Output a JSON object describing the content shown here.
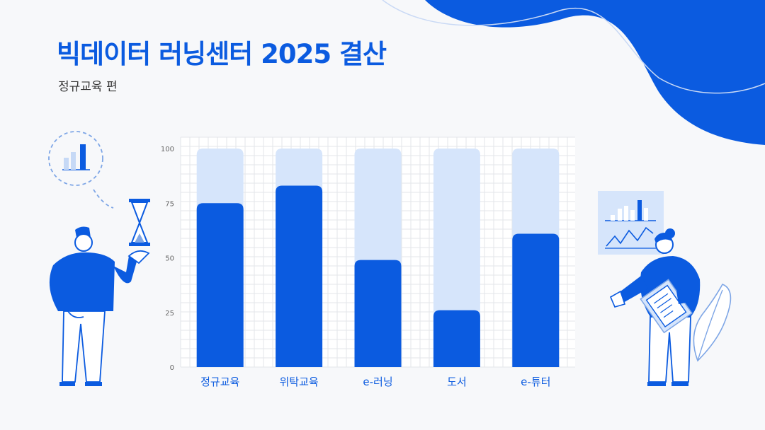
{
  "header": {
    "title": "빅데이터 러닝센터 2025 결산",
    "subtitle": "정규교육 편"
  },
  "colors": {
    "accent": "#0b5be0",
    "track": "#d6e5fb",
    "grid": "#e3e6ea",
    "background": "#f7f8fa"
  },
  "chart_data": {
    "type": "bar",
    "categories": [
      "정규교육",
      "위탁교육",
      "e-러닝",
      "도서",
      "e-튜터"
    ],
    "values": [
      75,
      83,
      49,
      26,
      61
    ],
    "track_values": [
      100,
      100,
      100,
      100,
      100
    ],
    "yticks": [
      0,
      25,
      50,
      75,
      100
    ],
    "ylim": [
      0,
      100
    ],
    "grid": true
  }
}
